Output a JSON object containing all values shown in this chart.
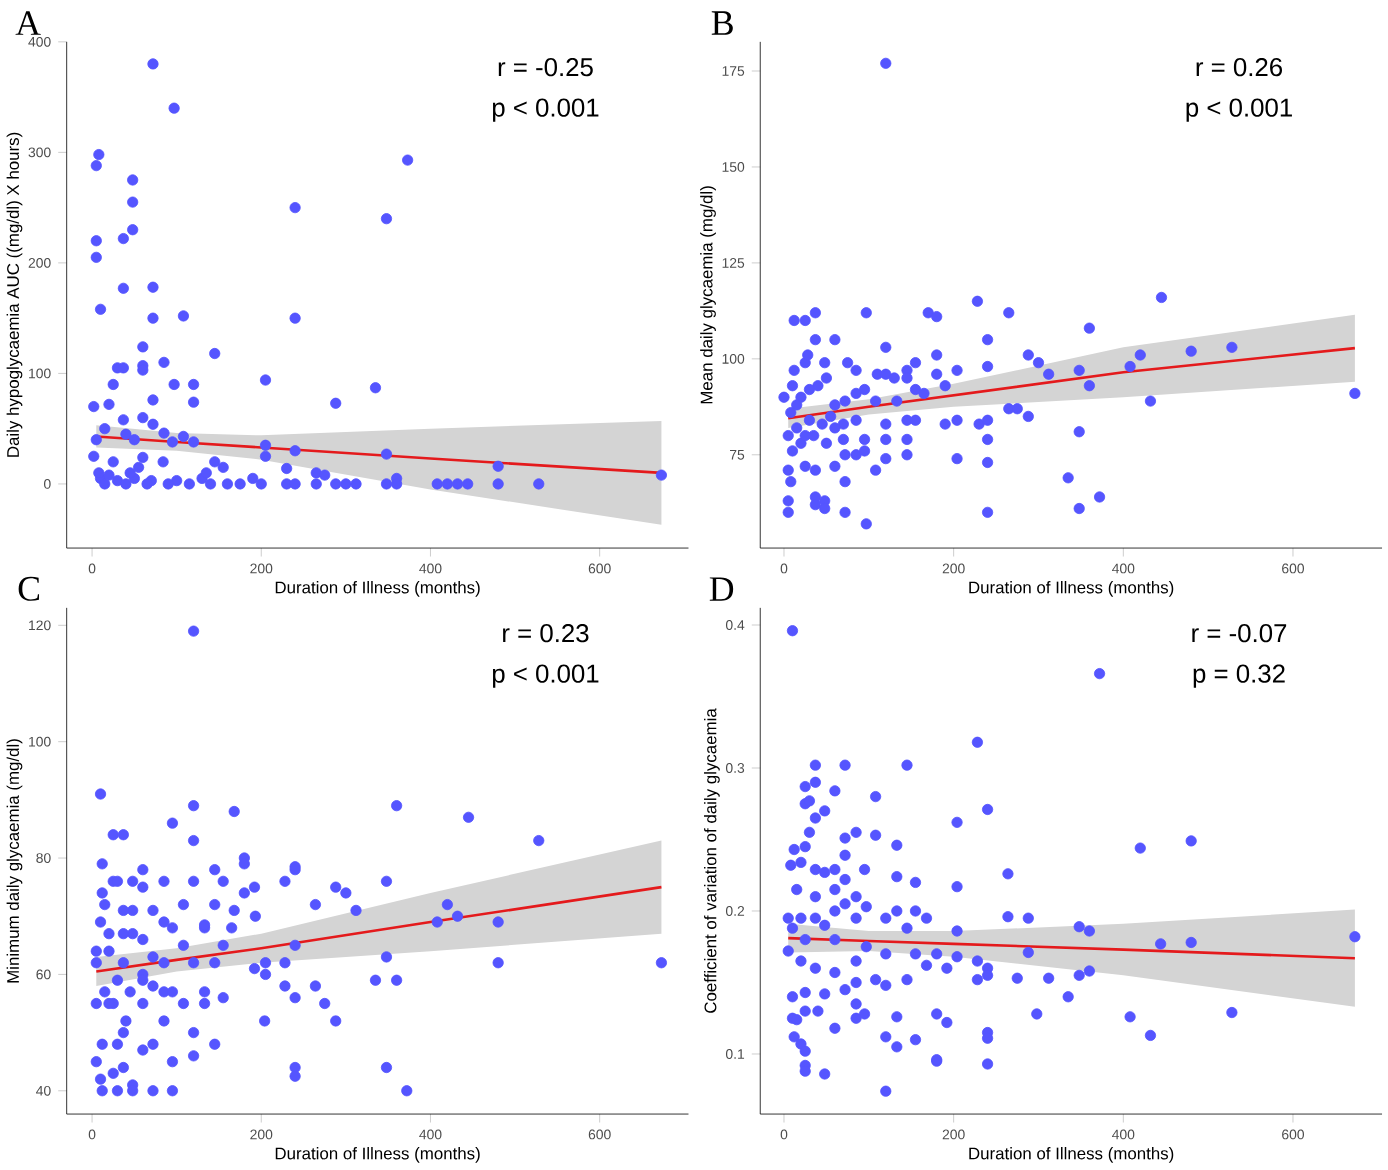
{
  "chart_data": [
    {
      "type": "scatter",
      "title": "A",
      "xlabel": "Duration of Illness (months)",
      "ylabel": "Daily hypoglycaemia AUC ((mg/dl) X hours)",
      "annotations": [
        "r = -0.25",
        "p < 0.001"
      ],
      "xlim": [
        -30,
        705
      ],
      "ylim": [
        -58,
        400
      ],
      "xticks": [
        0,
        200,
        400,
        600
      ],
      "yticks": [
        0,
        100,
        200,
        300,
        400
      ],
      "series": [
        {
          "marker": "circle",
          "color": "#5555ff",
          "x": [
            72,
            97,
            8,
            5,
            48,
            373,
            48,
            5,
            5,
            48,
            37,
            240,
            348,
            37,
            72,
            10,
            72,
            108,
            240,
            60,
            145,
            85,
            60,
            60,
            30,
            37,
            25,
            97,
            120,
            205,
            335,
            72,
            120,
            288,
            2,
            20,
            60,
            37,
            72,
            15,
            40,
            85,
            108,
            5,
            50,
            95,
            120,
            2,
            25,
            60,
            84,
            145,
            205,
            205,
            240,
            348,
            480,
            673,
            230,
            265,
            275,
            360,
            10,
            30,
            50,
            70,
            100,
            130,
            160,
            190,
            230,
            240,
            265,
            288,
            300,
            312,
            348,
            360,
            408,
            420,
            432,
            444,
            480,
            528,
            15,
            40,
            65,
            90,
            115,
            140,
            175,
            200,
            8,
            20,
            45,
            55,
            135,
            155
          ],
          "values": [
            380,
            340,
            298,
            288,
            275,
            293,
            255,
            220,
            205,
            230,
            222,
            250,
            240,
            177,
            178,
            158,
            150,
            152,
            150,
            124,
            118,
            110,
            107,
            103,
            105,
            105,
            90,
            90,
            90,
            94,
            87,
            76,
            74,
            73,
            70,
            72,
            60,
            58,
            54,
            50,
            45,
            46,
            43,
            40,
            40,
            38,
            38,
            25,
            20,
            24,
            20,
            20,
            35,
            25,
            30,
            27,
            16,
            8,
            14,
            10,
            8,
            5,
            5,
            3,
            5,
            3,
            3,
            5,
            0,
            5,
            0,
            0,
            0,
            0,
            0,
            0,
            0,
            0,
            0,
            0,
            0,
            0,
            0,
            0,
            0,
            0,
            0,
            0,
            0,
            0,
            0,
            0,
            10,
            8,
            10,
            15,
            10,
            15
          ]
        },
        {
          "type": "line",
          "color": "#e41a1c",
          "x": [
            5,
            100,
            200,
            400,
            673
          ],
          "values": [
            43,
            38,
            33,
            23,
            10
          ],
          "lower": [
            33,
            30,
            22,
            -5,
            -37
          ],
          "upper": [
            53,
            46,
            44,
            50,
            57
          ]
        }
      ]
    },
    {
      "type": "scatter",
      "title": "B",
      "xlabel": "Duration of Illness (months)",
      "ylabel": "Mean daily glycaemia (mg/dl)",
      "annotations": [
        "r = 0.26",
        "p < 0.001"
      ],
      "xlim": [
        -28,
        705
      ],
      "ylim": [
        50.7,
        182.6
      ],
      "xticks": [
        0,
        200,
        400,
        600
      ],
      "yticks": [
        75,
        100,
        125,
        150,
        175
      ],
      "series": [
        {
          "marker": "circle",
          "color": "#5555ff",
          "x": [
            120,
            445,
            228,
            265,
            97,
            37,
            12,
            25,
            170,
            180,
            37,
            60,
            240,
            360,
            120,
            528,
            480,
            420,
            288,
            300,
            408,
            348,
            312,
            240,
            155,
            180,
            204,
            180,
            190,
            145,
            110,
            120,
            130,
            145,
            155,
            165,
            133,
            108,
            85,
            95,
            72,
            60,
            50,
            40,
            30,
            20,
            15,
            8,
            0,
            25,
            12,
            48,
            85,
            75,
            432,
            360,
            673,
            265,
            275,
            288,
            230,
            204,
            190,
            240,
            145,
            155,
            120,
            85,
            70,
            60,
            45,
            30,
            15,
            5,
            20,
            35,
            50,
            70,
            95,
            120,
            145,
            240,
            348,
            204,
            240,
            145,
            120,
            108,
            95,
            85,
            72,
            60,
            37,
            25,
            10,
            5,
            8,
            72,
            335,
            5,
            37,
            48,
            37,
            48,
            5,
            72,
            240,
            348,
            372,
            97,
            25,
            55,
            10,
            28
          ],
          "values": [
            177,
            116,
            115,
            112,
            112,
            112,
            110,
            110,
            112,
            111,
            105,
            105,
            105,
            108,
            103,
            103,
            102,
            101,
            101,
            99,
            98,
            97,
            96,
            98,
            99,
            101,
            97,
            96,
            93,
            97,
            96,
            96,
            95,
            95,
            92,
            91,
            89,
            89,
            91,
            92,
            89,
            88,
            95,
            93,
            92,
            90,
            88,
            86,
            90,
            99,
            97,
            99,
            97,
            99,
            89,
            93,
            91,
            87,
            87,
            85,
            83,
            84,
            83,
            84,
            84,
            84,
            83,
            84,
            83,
            82,
            83,
            84,
            82,
            80,
            78,
            80,
            78,
            79,
            79,
            79,
            79,
            79,
            81,
            74,
            73,
            75,
            74,
            71,
            76,
            75,
            75,
            72,
            71,
            72,
            76,
            71,
            68,
            68,
            69,
            63,
            64,
            63,
            62,
            61,
            60,
            60,
            60,
            61,
            64,
            57,
            80,
            85,
            93,
            101
          ]
        },
        {
          "type": "line",
          "color": "#e41a1c",
          "x": [
            5,
            100,
            200,
            400,
            673
          ],
          "values": [
            84.5,
            87.5,
            90.5,
            96.5,
            102.8
          ],
          "lower": [
            82,
            85.5,
            87.5,
            90,
            94
          ],
          "upper": [
            87,
            89.5,
            93.5,
            103,
            111.5
          ]
        }
      ]
    },
    {
      "type": "scatter",
      "title": "C",
      "xlabel": "Duration of Illness (months)",
      "ylabel": "Minimum daily glycaemia (mg/dl)",
      "annotations": [
        "r = 0.23",
        "p < 0.001"
      ],
      "xlim": [
        -30,
        705
      ],
      "ylim": [
        36,
        123
      ],
      "xticks": [
        0,
        200,
        400,
        600
      ],
      "yticks": [
        40,
        60,
        80,
        100,
        120
      ],
      "series": [
        {
          "marker": "circle",
          "color": "#5555ff",
          "x": [
            120,
            10,
            120,
            360,
            445,
            168,
            528,
            25,
            37,
            95,
            120,
            180,
            180,
            240,
            240,
            12,
            60,
            85,
            145,
            155,
            192,
            288,
            348,
            228,
            300,
            420,
            432,
            408,
            480,
            264,
            312,
            180,
            168,
            145,
            120,
            108,
            72,
            48,
            37,
            25,
            30,
            12,
            15,
            48,
            60,
            133,
            165,
            193,
            133,
            95,
            85,
            60,
            48,
            37,
            20,
            10,
            5,
            5,
            20,
            37,
            60,
            72,
            85,
            108,
            120,
            145,
            155,
            192,
            205,
            205,
            228,
            240,
            348,
            480,
            673,
            85,
            60,
            30,
            15,
            5,
            25,
            45,
            72,
            95,
            133,
            155,
            228,
            240,
            264,
            275,
            335,
            360,
            108,
            133,
            120,
            85,
            60,
            37,
            12,
            30,
            204,
            288,
            145,
            60,
            72,
            95,
            120,
            240,
            240,
            348,
            372,
            10,
            5,
            25,
            37,
            48,
            12,
            30,
            48,
            72,
            95,
            20,
            40
          ],
          "values": [
            119,
            91,
            89,
            89,
            87,
            88,
            83,
            84,
            84,
            86,
            83,
            80,
            79,
            78,
            78.5,
            79,
            78,
            76,
            78,
            76,
            75,
            75,
            76,
            76,
            74,
            72,
            70,
            69,
            69,
            72,
            71,
            74,
            71,
            72,
            76,
            72,
            71,
            71,
            71,
            76,
            76,
            74,
            72,
            76,
            75,
            68,
            68,
            70,
            68.5,
            68,
            69,
            66,
            67,
            67,
            67,
            69,
            64,
            62,
            64,
            62,
            60,
            63,
            62,
            65,
            62,
            62,
            65,
            61,
            62,
            60,
            62,
            65,
            63,
            62,
            62,
            57,
            59,
            59,
            57,
            55,
            55,
            57,
            58,
            57,
            57,
            56,
            58,
            56,
            58,
            55,
            59,
            59,
            55,
            55,
            50,
            52,
            55,
            50,
            48,
            48,
            52,
            52,
            48,
            47,
            48,
            45,
            46,
            44,
            42.5,
            44,
            40,
            42,
            45,
            43,
            44,
            41,
            40,
            40,
            40,
            40,
            40,
            55,
            52
          ]
        },
        {
          "type": "line",
          "color": "#e41a1c",
          "x": [
            5,
            100,
            200,
            400,
            673
          ],
          "values": [
            60.5,
            62.5,
            64.5,
            69,
            75
          ],
          "lower": [
            58,
            60.5,
            62,
            64,
            67
          ],
          "upper": [
            63,
            64.5,
            67,
            74,
            83
          ]
        }
      ]
    },
    {
      "type": "scatter",
      "title": "D",
      "xlabel": "Duration of Illness (months)",
      "ylabel": "Coefficient of variation of daily glycaemia",
      "annotations": [
        "r = -0.07",
        "p = 0.32"
      ],
      "xlim": [
        -28,
        705
      ],
      "ylim": [
        0.058,
        0.412
      ],
      "xticks": [
        0,
        200,
        400,
        600
      ],
      "yticks": [
        0.1,
        0.2,
        0.3,
        0.4
      ],
      "series": [
        {
          "marker": "circle",
          "color": "#5555ff",
          "x": [
            10,
            372,
            228,
            37,
            72,
            145,
            37,
            25,
            60,
            108,
            25,
            30,
            240,
            37,
            48,
            204,
            30,
            85,
            108,
            72,
            480,
            420,
            12,
            25,
            133,
            72,
            20,
            8,
            37,
            48,
            60,
            95,
            133,
            264,
            155,
            204,
            72,
            15,
            37,
            60,
            85,
            97,
            120,
            133,
            155,
            168,
            264,
            288,
            204,
            145,
            85,
            60,
            37,
            20,
            10,
            5,
            25,
            48,
            72,
            97,
            60,
            360,
            348,
            444,
            480,
            673,
            155,
            180,
            204,
            228,
            240,
            288,
            120,
            85,
            5,
            20,
            37,
            60,
            85,
            108,
            120,
            145,
            168,
            192,
            240,
            228,
            275,
            312,
            348,
            360,
            335,
            298,
            408,
            432,
            528,
            10,
            25,
            48,
            72,
            85,
            95,
            133,
            180,
            192,
            10,
            25,
            40,
            60,
            120,
            155,
            133,
            240,
            240,
            12,
            20,
            25,
            25,
            25,
            48,
            180,
            180,
            240,
            120,
            85,
            15
          ],
          "values": [
            0.396,
            0.366,
            0.318,
            0.302,
            0.302,
            0.302,
            0.29,
            0.287,
            0.284,
            0.28,
            0.275,
            0.277,
            0.271,
            0.265,
            0.27,
            0.262,
            0.255,
            0.255,
            0.253,
            0.251,
            0.249,
            0.244,
            0.243,
            0.245,
            0.246,
            0.239,
            0.234,
            0.232,
            0.229,
            0.227,
            0.229,
            0.229,
            0.224,
            0.226,
            0.22,
            0.217,
            0.222,
            0.215,
            0.21,
            0.215,
            0.21,
            0.203,
            0.195,
            0.2,
            0.2,
            0.195,
            0.196,
            0.195,
            0.186,
            0.188,
            0.195,
            0.2,
            0.195,
            0.195,
            0.188,
            0.195,
            0.18,
            0.19,
            0.205,
            0.175,
            0.18,
            0.186,
            0.189,
            0.177,
            0.178,
            0.182,
            0.17,
            0.17,
            0.168,
            0.165,
            0.16,
            0.171,
            0.17,
            0.165,
            0.172,
            0.165,
            0.16,
            0.157,
            0.15,
            0.152,
            0.148,
            0.152,
            0.162,
            0.16,
            0.155,
            0.152,
            0.153,
            0.153,
            0.155,
            0.158,
            0.14,
            0.128,
            0.126,
            0.113,
            0.129,
            0.14,
            0.143,
            0.142,
            0.145,
            0.135,
            0.128,
            0.126,
            0.128,
            0.122,
            0.125,
            0.13,
            0.13,
            0.118,
            0.112,
            0.11,
            0.105,
            0.115,
            0.111,
            0.112,
            0.107,
            0.102,
            0.092,
            0.088,
            0.086,
            0.095,
            0.096,
            0.093,
            0.074,
            0.125,
            0.124
          ]
        },
        {
          "type": "line",
          "color": "#e41a1c",
          "x": [
            5,
            100,
            200,
            400,
            673
          ],
          "values": [
            0.181,
            0.179,
            0.177,
            0.173,
            0.167
          ],
          "lower": [
            0.171,
            0.172,
            0.168,
            0.155,
            0.133
          ],
          "upper": [
            0.191,
            0.186,
            0.186,
            0.191,
            0.201
          ]
        }
      ]
    }
  ]
}
